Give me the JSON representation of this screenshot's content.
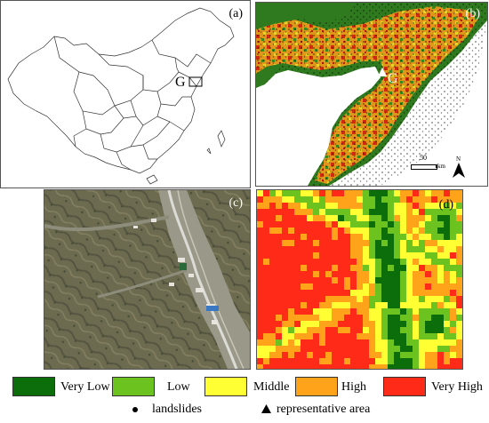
{
  "panels": {
    "a": {
      "label": "(a)",
      "marker": "G"
    },
    "b": {
      "label": "(b)",
      "marker": "G",
      "scale_value": "50",
      "scale_unit": "km",
      "north": "N"
    },
    "c": {
      "label": "(c)"
    },
    "d": {
      "label": "(d)"
    }
  },
  "legend": {
    "classes": [
      {
        "label": "Very Low",
        "color": "#0b6e0b"
      },
      {
        "label": "Low",
        "color": "#6cc21f"
      },
      {
        "label": "Middle",
        "color": "#ffff33"
      },
      {
        "label": "High",
        "color": "#ffa31a"
      },
      {
        "label": "Very High",
        "color": "#ff2b18"
      }
    ],
    "symbols": [
      {
        "label": "landslides",
        "icon": "dot-icon"
      },
      {
        "label": "representative area",
        "icon": "triangle-icon"
      }
    ]
  }
}
